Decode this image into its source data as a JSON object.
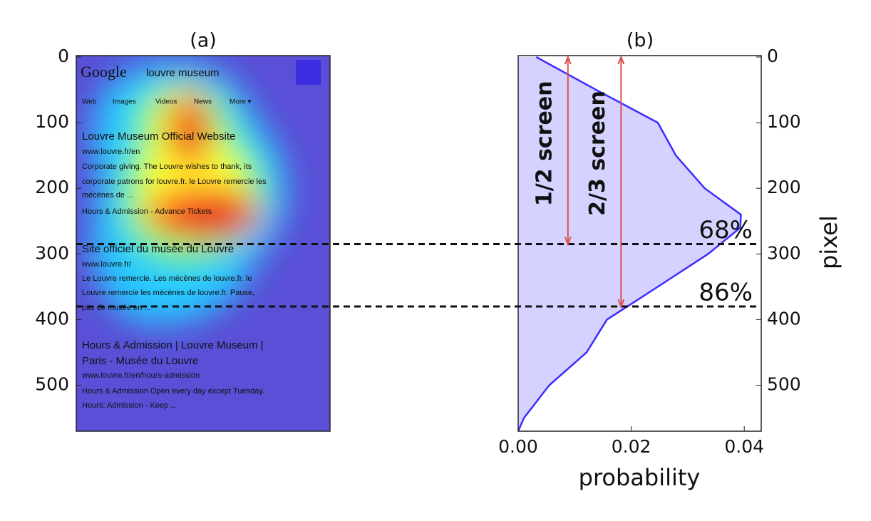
{
  "chart_data": [
    {
      "type": "heatmap",
      "title": "(a)",
      "ylim": [
        0,
        570
      ],
      "yticks": [
        0,
        100,
        200,
        300,
        400,
        500
      ],
      "screenshot": {
        "logo": "Google",
        "query": "louvre museum",
        "tabs": [
          "Web",
          "Images",
          "Videos",
          "News",
          "More ▾"
        ],
        "lines": [
          "Louvre Museum Official Website",
          "www.louvre.fr/en",
          "Corporate giving. The Louvre wishes to thank, its",
          "corporate patrons for louvre.fr. le Louvre remercie les",
          "mécènes de ...",
          "Hours & Admission - Advance Tickets",
          "Site officiel du musée du Louvre",
          "www.louvre.fr/",
          "Le Louvre remercie. Les mécènes de louvre.fr. le",
          "Louvre remercie les mécènes de louvre.fr. Pause,",
          "pas de musée en ...",
          "Hours & Admission | Louvre Museum |",
          "Paris - Musée du Louvre",
          "www.louvre.fr/en/hours-admission",
          "Hours & Admission Open every day except Tuesday.",
          "Hours; Admission - Keep ..."
        ]
      }
    },
    {
      "type": "area",
      "title": "(b)",
      "xlabel": "probability",
      "ylabel": "pixel",
      "y": [
        0,
        50,
        100,
        150,
        200,
        240,
        260,
        300,
        350,
        400,
        450,
        500,
        550,
        570
      ],
      "series": [
        {
          "color": "#3a2eff",
          "fill": "#d6d2ff",
          "values": [
            0.0032,
            0.0138,
            0.0247,
            0.0279,
            0.033,
            0.0394,
            0.0393,
            0.0336,
            0.0247,
            0.0157,
            0.0121,
            0.0055,
            0.001,
            0.0
          ]
        }
      ],
      "xlim": [
        0,
        0.043
      ],
      "ylim": [
        0,
        570
      ],
      "xticks": [
        {
          "value": 0,
          "label": "0.00"
        },
        {
          "value": 0.02,
          "label": "0.02"
        },
        {
          "value": 0.04,
          "label": "0.04"
        }
      ],
      "yticks": [
        0,
        100,
        200,
        300,
        400,
        500
      ],
      "hlines": [
        {
          "value": 285,
          "label": "68%"
        },
        {
          "value": 380,
          "label": "86%"
        }
      ],
      "arrows": [
        {
          "text": "1/2 screen",
          "x": 0.0088,
          "from": 0,
          "to": 285,
          "color": "#d9534f"
        },
        {
          "text": "2/3 screen",
          "x": 0.0182,
          "from": 0,
          "to": 380,
          "color": "#d9534f"
        }
      ]
    }
  ]
}
